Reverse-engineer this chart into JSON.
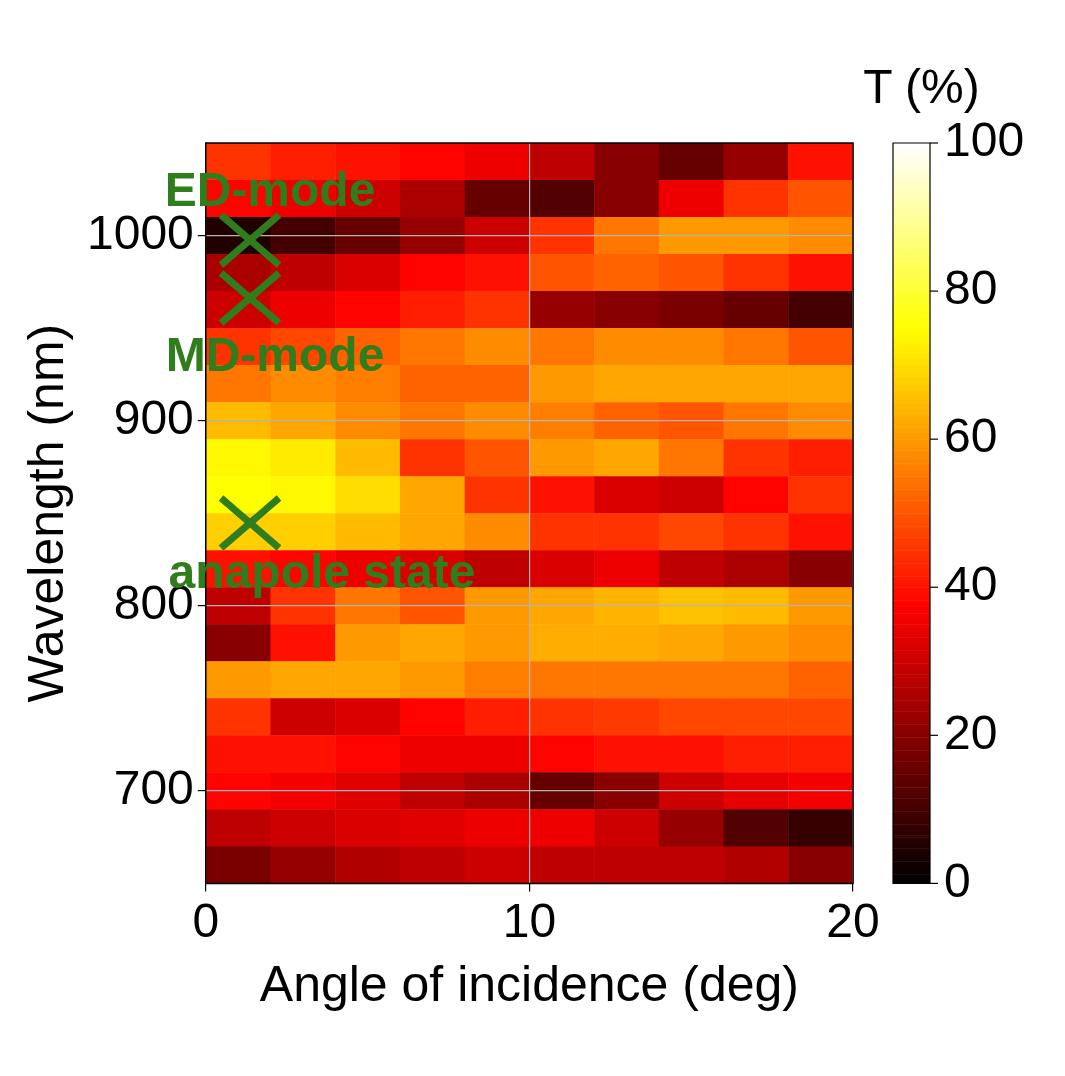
{
  "chart_data": {
    "type": "heatmap",
    "xlabel": "Angle of incidence (deg)",
    "ylabel": "Wavelength (nm)",
    "clabel": "T (%)",
    "x": [
      1,
      3,
      5,
      7,
      9,
      11,
      13,
      15,
      17,
      19
    ],
    "y_categories": [
      null,
      null,
      "1000",
      null,
      null,
      null,
      null,
      "900",
      null,
      null,
      null,
      null,
      "800",
      null,
      null,
      null,
      null,
      "700",
      null,
      null
    ],
    "cells": [
      [
        45,
        42,
        40,
        38,
        35,
        28,
        20,
        15,
        22,
        40
      ],
      [
        38,
        35,
        30,
        25,
        15,
        12,
        20,
        35,
        45,
        50
      ],
      [
        5,
        10,
        15,
        22,
        30,
        45,
        55,
        60,
        60,
        58
      ],
      [
        25,
        28,
        32,
        38,
        40,
        50,
        52,
        50,
        45,
        40
      ],
      [
        30,
        35,
        38,
        42,
        45,
        22,
        20,
        18,
        15,
        10
      ],
      [
        45,
        48,
        52,
        55,
        58,
        55,
        58,
        58,
        55,
        50
      ],
      [
        55,
        58,
        56,
        52,
        52,
        60,
        62,
        62,
        62,
        62
      ],
      [
        65,
        62,
        58,
        55,
        58,
        56,
        52,
        50,
        55,
        58
      ],
      [
        74,
        72,
        65,
        45,
        50,
        60,
        62,
        55,
        45,
        42
      ],
      [
        75,
        74,
        70,
        62,
        45,
        40,
        32,
        30,
        38,
        45
      ],
      [
        68,
        68,
        65,
        62,
        58,
        45,
        45,
        48,
        45,
        40
      ],
      [
        40,
        38,
        35,
        32,
        28,
        32,
        35,
        28,
        25,
        20
      ],
      [
        28,
        45,
        55,
        50,
        60,
        62,
        64,
        66,
        65,
        60
      ],
      [
        20,
        40,
        60,
        62,
        60,
        63,
        63,
        62,
        60,
        58
      ],
      [
        60,
        62,
        62,
        60,
        56,
        55,
        55,
        55,
        55,
        52
      ],
      [
        45,
        30,
        32,
        38,
        42,
        45,
        46,
        48,
        48,
        48
      ],
      [
        40,
        40,
        38,
        35,
        35,
        38,
        40,
        40,
        42,
        42
      ],
      [
        38,
        36,
        33,
        28,
        25,
        15,
        20,
        30,
        34,
        36
      ],
      [
        28,
        30,
        32,
        33,
        35,
        35,
        30,
        22,
        12,
        8
      ],
      [
        18,
        22,
        26,
        28,
        30,
        28,
        28,
        28,
        26,
        20
      ]
    ],
    "xlim": [
      0,
      20
    ],
    "xticks": [
      0,
      10,
      20
    ],
    "clim": [
      0,
      100
    ],
    "cticks": [
      0,
      20,
      40,
      60,
      80,
      100
    ],
    "grid": true,
    "annotations": [
      "ED-mode",
      "MD-mode",
      "anapole state"
    ]
  }
}
